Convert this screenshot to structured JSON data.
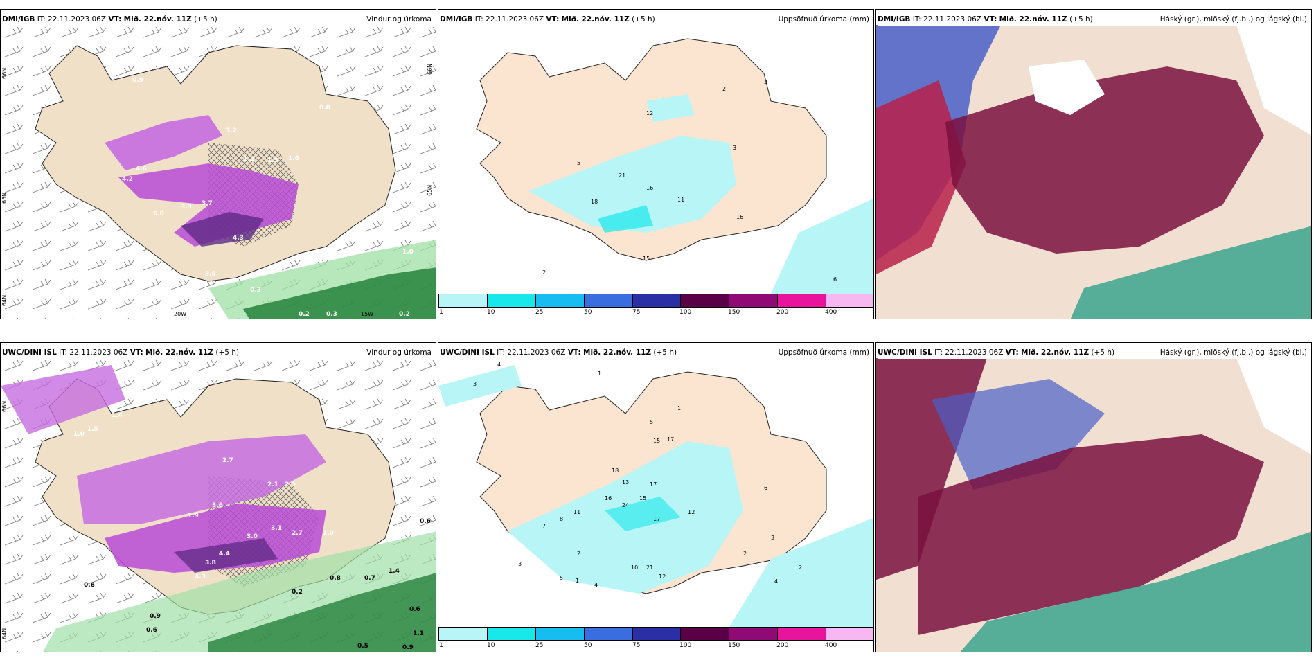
{
  "panels": [
    {
      "model": "DMI/IGB",
      "it_label": "IT:",
      "it_value": "22.11.2023 06Z",
      "vt_label": "VT:",
      "vt_value": "Mið. 22.nóv. 11Z",
      "lead": "(+5 h)",
      "title": "Vindur og úrkoma",
      "map_labels": {
        "lat66": "66N",
        "lat65": "65N",
        "lat64": "64N",
        "lon20": "20W",
        "lon15": "15W",
        "values": [
          "3.2",
          "4.6",
          "4.2",
          "6.0",
          "3.9",
          "3.7",
          "4.3",
          "3.5",
          "1.6",
          "1.3",
          "1.2",
          "0.8",
          "0.9",
          "0.3",
          "0.2",
          "0.3",
          "0.2",
          "1.0"
        ]
      }
    },
    {
      "model": "DMI/IGB",
      "it_label": "IT:",
      "it_value": "22.11.2023 06Z",
      "vt_label": "VT:",
      "vt_value": "Mið. 22.nóv. 11Z",
      "lead": "(+5 h)",
      "title": "Uppsöfnuð úrkoma (mm)",
      "map_labels": {
        "values": [
          "12",
          "2",
          "2",
          "3",
          "5",
          "21",
          "16",
          "18",
          "11",
          "16",
          "15",
          "2",
          "6"
        ]
      }
    },
    {
      "model": "DMI/IGB",
      "it_label": "IT:",
      "it_value": "22.11.2023 06Z",
      "vt_label": "VT:",
      "vt_value": "Mið. 22.nóv. 11Z",
      "lead": "(+5 h)",
      "title": "Háský (gr.), miðský (fj.bl.) og lágský (bl.)"
    },
    {
      "model": "UWC/DINI ISL",
      "it_label": "IT:",
      "it_value": "22.11.2023 06Z",
      "vt_label": "VT:",
      "vt_value": "Mið. 22.nóv. 11Z",
      "lead": "(+5 h)",
      "title": "Vindur og úrkoma",
      "map_labels": {
        "lat66": "66N",
        "lat64": "64N",
        "values": [
          "1.4",
          "1.5",
          "1.0",
          "2.7",
          "2.1",
          "2.3",
          "3.6",
          "1.9",
          "3.1",
          "3.0",
          "2.7",
          "1.0",
          "4.4",
          "3.8",
          "4.3",
          "2.2",
          "0.6",
          "0.9",
          "0.6",
          "0.6",
          "0.7",
          "1.4",
          "0.6",
          "1.1",
          "0.5",
          "0.9",
          "0.2",
          "0.8"
        ]
      }
    },
    {
      "model": "UWC/DINI ISL",
      "it_label": "IT:",
      "it_value": "22.11.2023 06Z",
      "vt_label": "VT:",
      "vt_value": "Mið. 22.nóv. 11Z",
      "lead": "(+5 h)",
      "title": "Uppsöfnuð úrkoma (mm)",
      "map_labels": {
        "values": [
          "4",
          "3",
          "1",
          "1",
          "5",
          "17",
          "15",
          "18",
          "17",
          "13",
          "15",
          "16",
          "24",
          "11",
          "17",
          "12",
          "8",
          "7",
          "3",
          "2",
          "4",
          "5",
          "10",
          "21",
          "12",
          "1",
          "2",
          "3",
          "4",
          "6",
          "2"
        ]
      }
    },
    {
      "model": "UWC/DINI ISL",
      "it_label": "IT:",
      "it_value": "22.11.2023 06Z",
      "vt_label": "VT:",
      "vt_value": "Mið. 22.nóv. 11Z",
      "lead": "(+5 h)",
      "title": "Háský (gr.), miðský (fj.bl.) og lágský (bl.)"
    }
  ],
  "colorbar": {
    "colors": [
      "#b8f5f7",
      "#19e8ea",
      "#17bdf0",
      "#3a6ee0",
      "#2b2fa6",
      "#5a0047",
      "#8f0a74",
      "#e8149e",
      "#f7b8f2"
    ],
    "ticks": [
      "1",
      "10",
      "25",
      "50",
      "75",
      "100",
      "150",
      "200",
      "400"
    ]
  }
}
